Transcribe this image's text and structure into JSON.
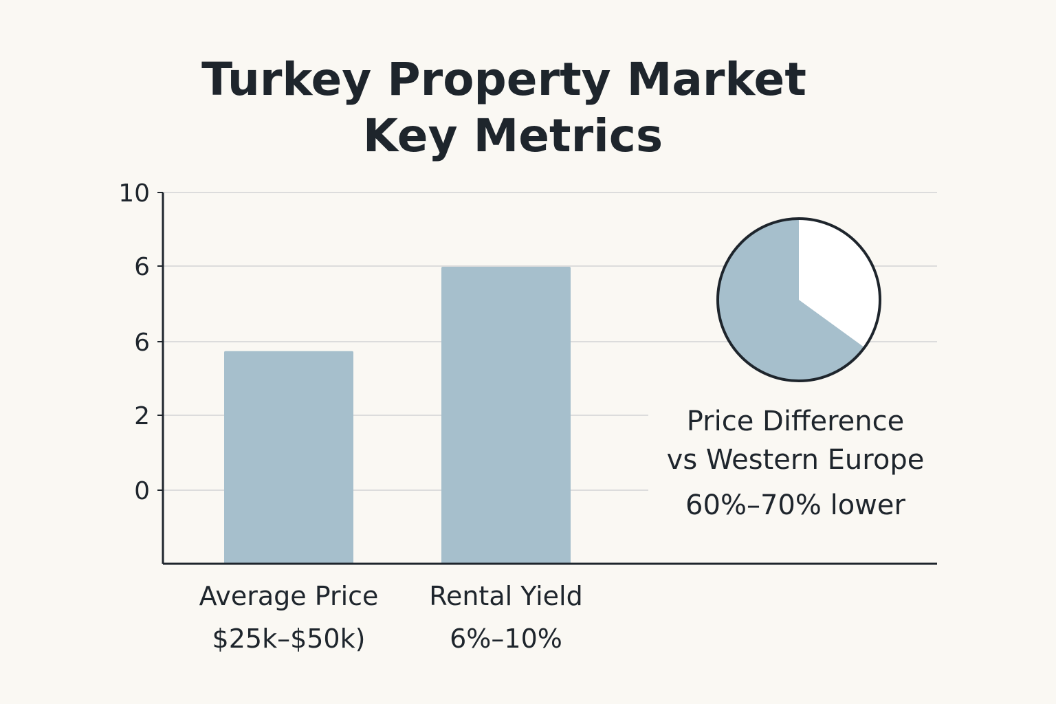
{
  "chart_data": [
    {
      "type": "bar",
      "title": [
        "Turkey Property Market",
        "Key Metrics"
      ],
      "xlabel": "",
      "ylabel": "",
      "grid": true,
      "y_ticks": [
        "0",
        "2",
        "6",
        "6",
        "10"
      ],
      "categories": [
        {
          "name": "Average Price",
          "sub": "$25k–$50k)"
        },
        {
          "name": "Rental Yield",
          "sub": "6%–10%"
        }
      ],
      "values": [
        5.3,
        7.8
      ],
      "ylim": [
        -1,
        10
      ],
      "colors": {
        "bar": "#a6bfcc",
        "grid": "#dcdcdc",
        "axis": "#1e252c",
        "background": "#faf8f3"
      }
    },
    {
      "type": "pie",
      "title": [
        "Price Difference",
        "vs Western Europe"
      ],
      "annotation": "60%–70% lower",
      "slices": [
        {
          "label": "",
          "value": 65,
          "color": "#a6bfcc"
        },
        {
          "label": "",
          "value": 35,
          "color": "#ffffff"
        }
      ]
    }
  ]
}
